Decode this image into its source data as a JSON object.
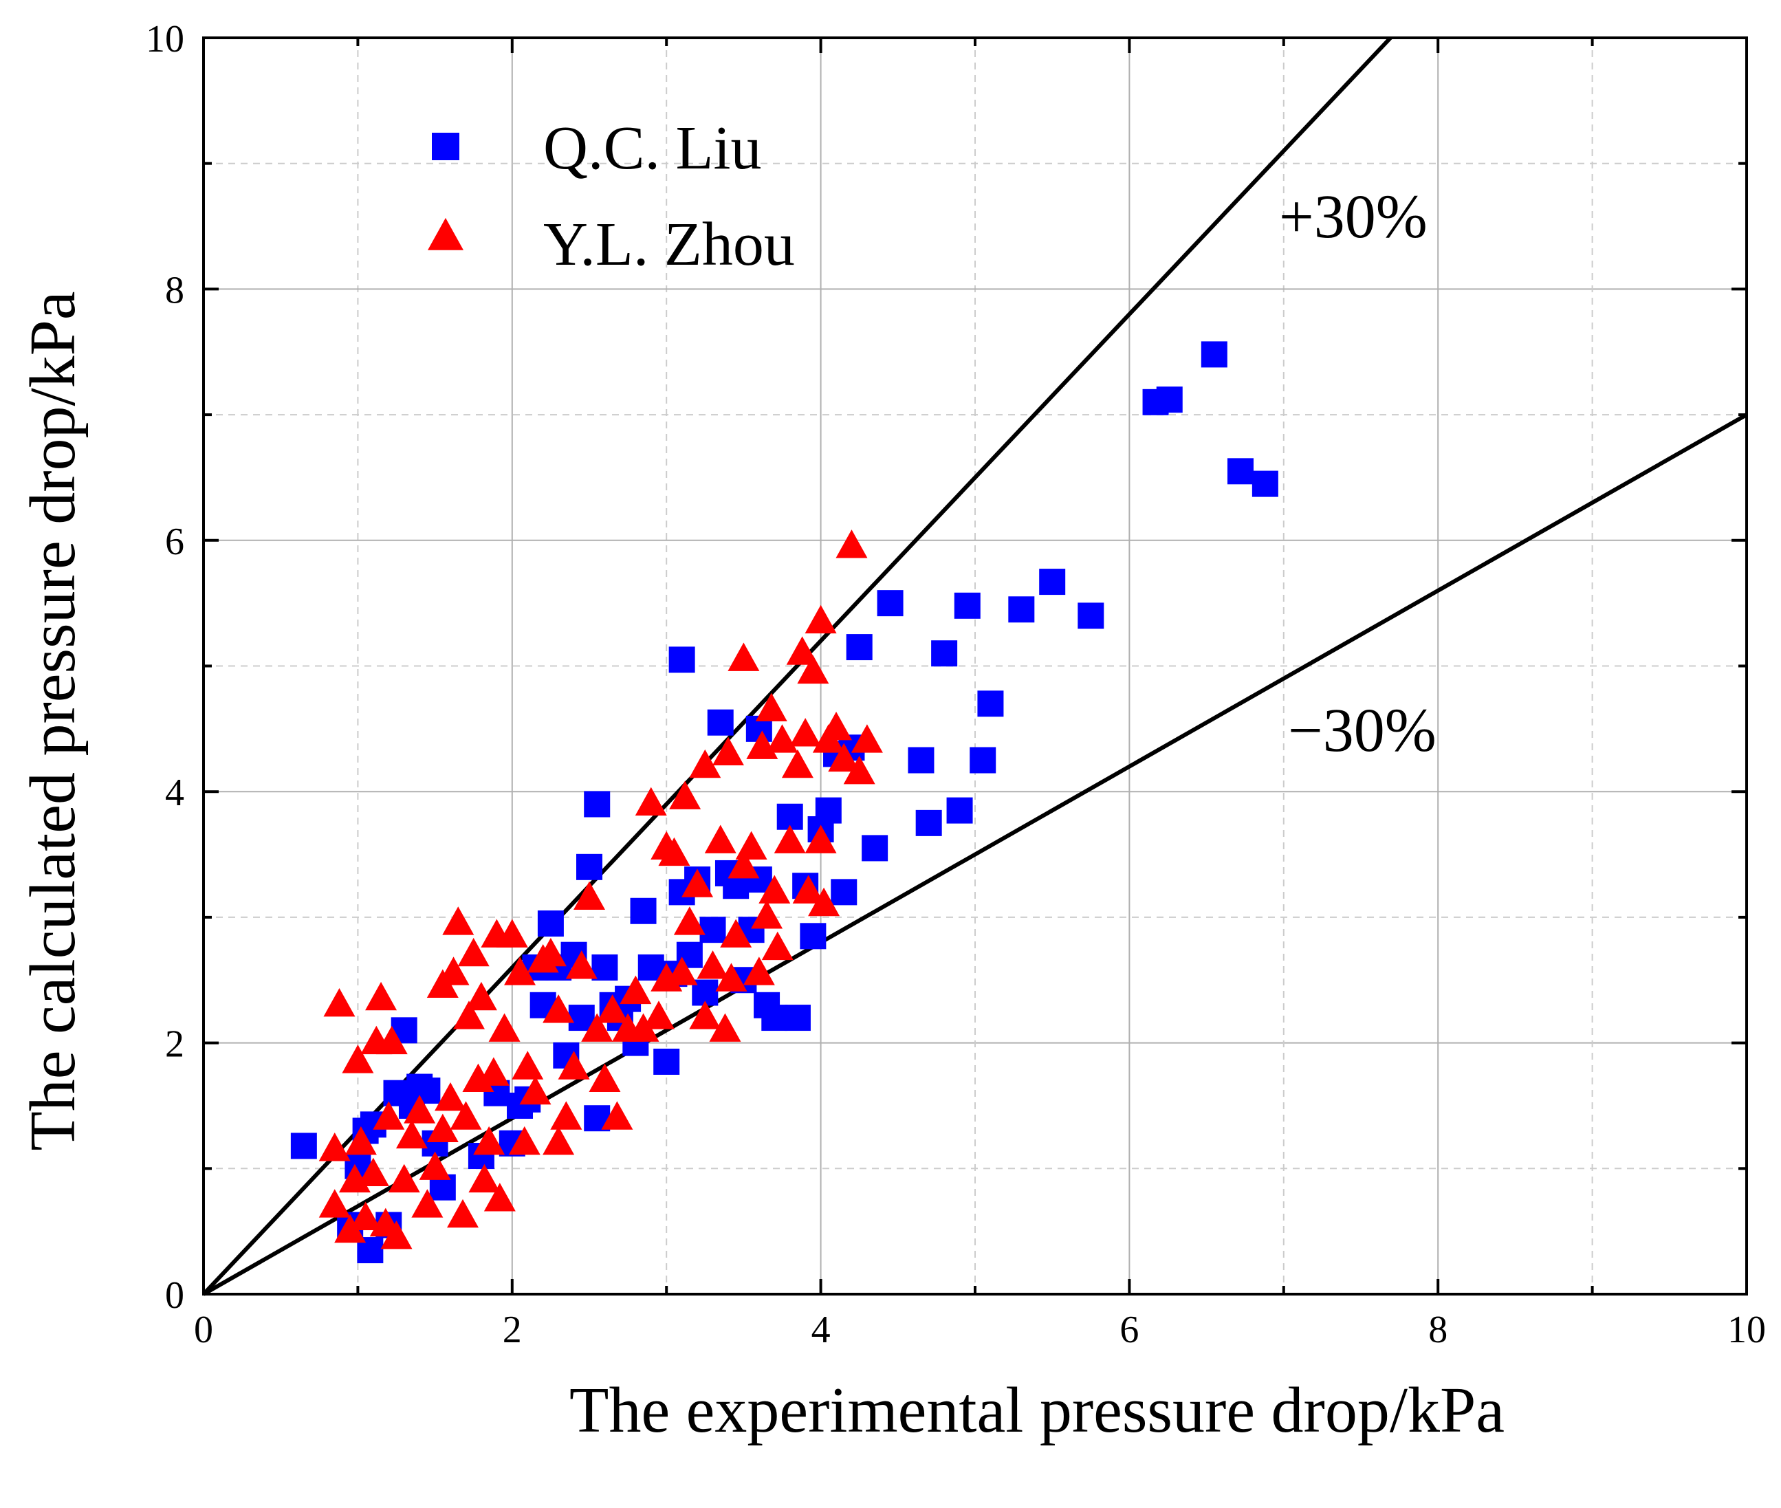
{
  "chart_data": {
    "type": "scatter",
    "xlabel": "The experimental pressure drop/kPa",
    "ylabel": "The calculated pressure drop/kPa",
    "xlim": [
      0,
      10
    ],
    "ylim": [
      0,
      10
    ],
    "x_ticks": [
      "0",
      "2",
      "4",
      "6",
      "8",
      "10"
    ],
    "y_ticks": [
      "0",
      "2",
      "4",
      "6",
      "8",
      "10"
    ],
    "grid": true,
    "legend_position": "top-left",
    "series": [
      {
        "name": "Q.C. Liu",
        "marker": "square",
        "color": "#0000ff",
        "points": [
          [
            0.65,
            1.18
          ],
          [
            1.05,
            1.3
          ],
          [
            1.1,
            1.35
          ],
          [
            1.0,
            1.02
          ],
          [
            0.95,
            0.55
          ],
          [
            1.08,
            0.35
          ],
          [
            1.2,
            0.55
          ],
          [
            1.25,
            1.6
          ],
          [
            1.3,
            2.1
          ],
          [
            1.35,
            1.5
          ],
          [
            1.4,
            1.65
          ],
          [
            1.45,
            1.62
          ],
          [
            1.5,
            1.2
          ],
          [
            1.55,
            0.85
          ],
          [
            1.8,
            1.1
          ],
          [
            1.9,
            1.6
          ],
          [
            2.0,
            1.2
          ],
          [
            2.05,
            1.5
          ],
          [
            2.1,
            1.55
          ],
          [
            2.15,
            2.6
          ],
          [
            2.2,
            2.3
          ],
          [
            2.25,
            2.95
          ],
          [
            2.3,
            2.6
          ],
          [
            2.35,
            1.9
          ],
          [
            2.4,
            2.7
          ],
          [
            2.45,
            2.2
          ],
          [
            2.5,
            3.4
          ],
          [
            2.55,
            1.4
          ],
          [
            2.6,
            2.6
          ],
          [
            2.65,
            2.3
          ],
          [
            2.55,
            3.9
          ],
          [
            2.7,
            2.2
          ],
          [
            2.75,
            2.35
          ],
          [
            2.8,
            2.0
          ],
          [
            2.85,
            3.05
          ],
          [
            2.9,
            2.6
          ],
          [
            3.0,
            1.85
          ],
          [
            3.05,
            2.55
          ],
          [
            3.1,
            3.2
          ],
          [
            3.15,
            2.7
          ],
          [
            3.2,
            3.3
          ],
          [
            3.25,
            2.4
          ],
          [
            3.1,
            5.05
          ],
          [
            3.3,
            2.9
          ],
          [
            3.35,
            4.55
          ],
          [
            3.4,
            3.35
          ],
          [
            3.45,
            3.25
          ],
          [
            3.5,
            2.5
          ],
          [
            3.55,
            2.9
          ],
          [
            3.6,
            3.3
          ],
          [
            3.65,
            2.3
          ],
          [
            3.7,
            2.2
          ],
          [
            3.6,
            4.5
          ],
          [
            3.8,
            3.8
          ],
          [
            3.85,
            2.2
          ],
          [
            3.9,
            3.25
          ],
          [
            3.95,
            2.85
          ],
          [
            4.0,
            3.7
          ],
          [
            4.05,
            3.85
          ],
          [
            4.1,
            4.3
          ],
          [
            4.15,
            3.2
          ],
          [
            4.2,
            4.35
          ],
          [
            4.25,
            5.15
          ],
          [
            4.35,
            3.55
          ],
          [
            4.45,
            5.5
          ],
          [
            4.65,
            4.25
          ],
          [
            4.7,
            3.75
          ],
          [
            4.8,
            5.1
          ],
          [
            4.9,
            3.85
          ],
          [
            4.95,
            5.48
          ],
          [
            5.05,
            4.25
          ],
          [
            5.1,
            4.7
          ],
          [
            5.3,
            5.45
          ],
          [
            5.5,
            5.67
          ],
          [
            5.75,
            5.4
          ],
          [
            6.17,
            7.1
          ],
          [
            6.26,
            7.12
          ],
          [
            6.55,
            7.48
          ],
          [
            6.72,
            6.55
          ],
          [
            6.88,
            6.45
          ]
        ]
      },
      {
        "name": "Y.L. Zhou",
        "marker": "triangle",
        "color": "#ff0000",
        "points": [
          [
            0.85,
            1.15
          ],
          [
            0.85,
            0.7
          ],
          [
            0.88,
            2.3
          ],
          [
            0.95,
            0.5
          ],
          [
            0.98,
            0.9
          ],
          [
            1.0,
            1.85
          ],
          [
            1.02,
            1.2
          ],
          [
            1.05,
            0.6
          ],
          [
            1.1,
            0.95
          ],
          [
            1.12,
            2.0
          ],
          [
            1.15,
            2.35
          ],
          [
            1.18,
            0.55
          ],
          [
            1.2,
            1.4
          ],
          [
            1.22,
            2.0
          ],
          [
            1.25,
            0.45
          ],
          [
            1.3,
            0.9
          ],
          [
            1.35,
            1.25
          ],
          [
            1.4,
            1.45
          ],
          [
            1.45,
            0.7
          ],
          [
            1.5,
            1.0
          ],
          [
            1.55,
            2.45
          ],
          [
            1.55,
            1.3
          ],
          [
            1.6,
            1.55
          ],
          [
            1.62,
            2.55
          ],
          [
            1.65,
            2.95
          ],
          [
            1.68,
            0.62
          ],
          [
            1.7,
            1.4
          ],
          [
            1.72,
            2.2
          ],
          [
            1.75,
            2.7
          ],
          [
            1.78,
            1.7
          ],
          [
            1.8,
            2.35
          ],
          [
            1.82,
            0.9
          ],
          [
            1.85,
            1.2
          ],
          [
            1.88,
            1.75
          ],
          [
            1.9,
            2.85
          ],
          [
            1.92,
            0.75
          ],
          [
            1.95,
            2.1
          ],
          [
            2.0,
            2.85
          ],
          [
            2.05,
            2.55
          ],
          [
            2.08,
            1.2
          ],
          [
            2.1,
            1.8
          ],
          [
            2.15,
            1.6
          ],
          [
            2.2,
            2.65
          ],
          [
            2.25,
            2.7
          ],
          [
            2.3,
            1.2
          ],
          [
            2.3,
            2.25
          ],
          [
            2.35,
            1.4
          ],
          [
            2.4,
            1.8
          ],
          [
            2.45,
            2.6
          ],
          [
            2.5,
            3.15
          ],
          [
            2.55,
            2.1
          ],
          [
            2.6,
            1.7
          ],
          [
            2.65,
            2.25
          ],
          [
            2.68,
            1.4
          ],
          [
            2.75,
            2.1
          ],
          [
            2.8,
            2.4
          ],
          [
            2.85,
            2.1
          ],
          [
            2.9,
            3.9
          ],
          [
            2.95,
            2.2
          ],
          [
            3.0,
            2.5
          ],
          [
            3.0,
            3.55
          ],
          [
            3.05,
            3.5
          ],
          [
            3.1,
            2.55
          ],
          [
            3.12,
            3.95
          ],
          [
            3.15,
            2.95
          ],
          [
            3.2,
            3.25
          ],
          [
            3.25,
            4.2
          ],
          [
            3.25,
            2.2
          ],
          [
            3.3,
            2.6
          ],
          [
            3.35,
            3.6
          ],
          [
            3.38,
            2.1
          ],
          [
            3.4,
            4.3
          ],
          [
            3.42,
            2.5
          ],
          [
            3.45,
            2.85
          ],
          [
            3.5,
            3.4
          ],
          [
            3.5,
            5.05
          ],
          [
            3.55,
            3.55
          ],
          [
            3.6,
            2.55
          ],
          [
            3.62,
            4.35
          ],
          [
            3.65,
            3.0
          ],
          [
            3.68,
            4.65
          ],
          [
            3.7,
            3.2
          ],
          [
            3.72,
            2.75
          ],
          [
            3.75,
            4.4
          ],
          [
            3.8,
            3.6
          ],
          [
            3.85,
            4.2
          ],
          [
            3.88,
            5.1
          ],
          [
            3.9,
            4.45
          ],
          [
            3.92,
            3.2
          ],
          [
            3.95,
            4.95
          ],
          [
            4.0,
            3.6
          ],
          [
            4.0,
            5.35
          ],
          [
            4.02,
            3.1
          ],
          [
            4.05,
            4.4
          ],
          [
            4.1,
            4.5
          ],
          [
            4.15,
            4.25
          ],
          [
            4.2,
            5.95
          ],
          [
            4.25,
            4.15
          ],
          [
            4.3,
            4.4
          ]
        ]
      }
    ],
    "reference_lines": [
      {
        "label": "+30%",
        "slope": 1.3
      },
      {
        "label": "−30%",
        "slope": 0.7
      }
    ]
  }
}
